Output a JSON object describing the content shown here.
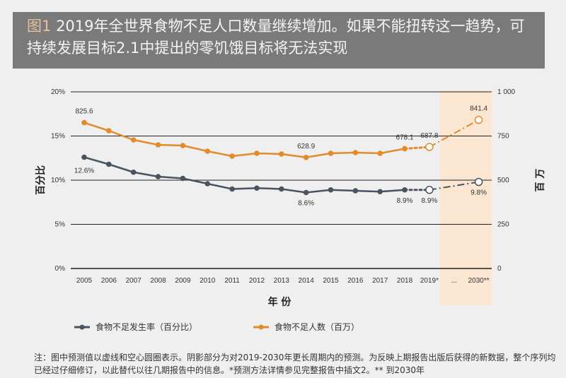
{
  "title": {
    "fig_label": "图1",
    "text": "2019年全世界食物不足人口数量继续增加。如果不能扭转这一趋势，可持续发展目标2.1中提出的零饥饿目标将无法实现"
  },
  "chart_data": {
    "type": "line",
    "categories": [
      "2005",
      "2006",
      "2007",
      "2008",
      "2009",
      "2010",
      "2011",
      "2012",
      "2013",
      "2014",
      "2015",
      "2016",
      "2017",
      "2018",
      "2019*",
      "...",
      "2030**"
    ],
    "xlabel": "年 份",
    "ylabel_left": "百分比",
    "ylabel_right": "百 万",
    "left_ticks": [
      "0%",
      "5%",
      "10%",
      "15%",
      "20%"
    ],
    "right_ticks": [
      "0",
      "250",
      "500",
      "750",
      "1 000"
    ],
    "ylim_left": [
      0,
      20
    ],
    "ylim_right": [
      0,
      1000
    ],
    "shaded_region": [
      "2019*",
      "2030**"
    ],
    "series": [
      {
        "name": "食物不足发生率（百分比）",
        "axis": "left",
        "color": "#4a5360",
        "values": [
          12.6,
          11.8,
          10.9,
          10.4,
          10.2,
          9.6,
          9.0,
          9.1,
          9.0,
          8.6,
          8.9,
          8.8,
          8.7,
          8.9,
          8.9,
          null,
          9.8
        ],
        "labels": {
          "0": "12.6%",
          "9": "8.6%",
          "13": "8.9%",
          "14": "8.9%",
          "16": "9.8%"
        }
      },
      {
        "name": "食物不足人数（百万）",
        "axis": "right",
        "color": "#e38a2b",
        "values": [
          825.6,
          780,
          728,
          700,
          696,
          664,
          636,
          652,
          648,
          628.9,
          652,
          656,
          652,
          678.1,
          687.8,
          null,
          841.4
        ],
        "labels": {
          "0": "825.6",
          "9": "628.9",
          "13": "678.1",
          "14": "687.8",
          "16": "841.4"
        }
      }
    ],
    "projected_from_index": 13,
    "hollow_indices": [
      14,
      16
    ],
    "legend_position": "bottom"
  },
  "note": "注：图中预测值以虚线和空心圆圈表示。阴影部分为对2019-2030年更长周期内的预测。为反映上期报告出版后获得的新数据，整个序列均已经过仔细修订，以此替代以往几期报告中的信息。*预测方法详情参见完整报告中插文2。** 到2030年"
}
